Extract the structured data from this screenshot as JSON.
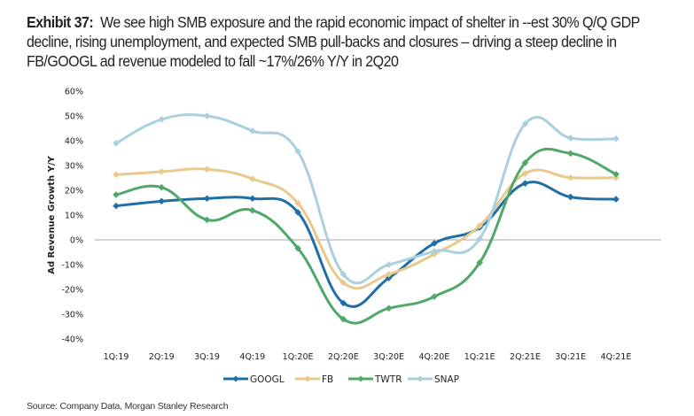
{
  "exhibit": {
    "label": "Exhibit 37:",
    "text": "We see high SMB exposure and the rapid economic impact of shelter in --est 30% Q/Q GDP decline, rising unemployment, and expected SMB pull-backs and closures – driving a steep decline in FB/GOOGL ad revenue modeled to fall ~17%/26% Y/Y in 2Q20"
  },
  "source": "Source: Company Data, Morgan Stanley Research",
  "chart_data": {
    "type": "line",
    "title": "",
    "xlabel": "",
    "ylabel": "Ad Revenue Growth Y/Y",
    "ylim": [
      -0.4,
      0.6
    ],
    "yticks": [
      0.6,
      0.5,
      0.4,
      0.3,
      0.2,
      0.1,
      0.0,
      -0.1,
      -0.2,
      -0.3,
      -0.4
    ],
    "ytick_labels": [
      "60%",
      "50%",
      "40%",
      "30%",
      "20%",
      "10%",
      "0%",
      "-10%",
      "-20%",
      "-30%",
      "-40%"
    ],
    "grid": false,
    "zero_line": true,
    "legend_position": "bottom",
    "categories": [
      "1Q:19",
      "2Q:19",
      "3Q:19",
      "4Q:19",
      "1Q:20E",
      "2Q:20E",
      "3Q:20E",
      "4Q:20E",
      "1Q:21E",
      "2Q:21E",
      "3Q:21E",
      "4Q:21E"
    ],
    "series": [
      {
        "name": "GOOGL",
        "color": "#1f6fa6",
        "values": [
          0.137,
          0.156,
          0.167,
          0.167,
          0.111,
          -0.255,
          -0.154,
          -0.014,
          0.05,
          0.228,
          0.173,
          0.164
        ]
      },
      {
        "name": "FB",
        "color": "#e9c98b",
        "values": [
          0.263,
          0.275,
          0.285,
          0.246,
          0.148,
          -0.173,
          -0.139,
          -0.058,
          0.057,
          0.268,
          0.251,
          0.251
        ]
      },
      {
        "name": "TWTR",
        "color": "#4fa867",
        "values": [
          0.182,
          0.212,
          0.081,
          0.119,
          -0.034,
          -0.32,
          -0.276,
          -0.229,
          -0.092,
          0.311,
          0.349,
          0.265
        ]
      },
      {
        "name": "SNAP",
        "color": "#a9d0dc",
        "values": [
          0.39,
          0.486,
          0.5,
          0.44,
          0.357,
          -0.139,
          -0.1,
          -0.046,
          0.004,
          0.468,
          0.411,
          0.408
        ]
      }
    ]
  }
}
